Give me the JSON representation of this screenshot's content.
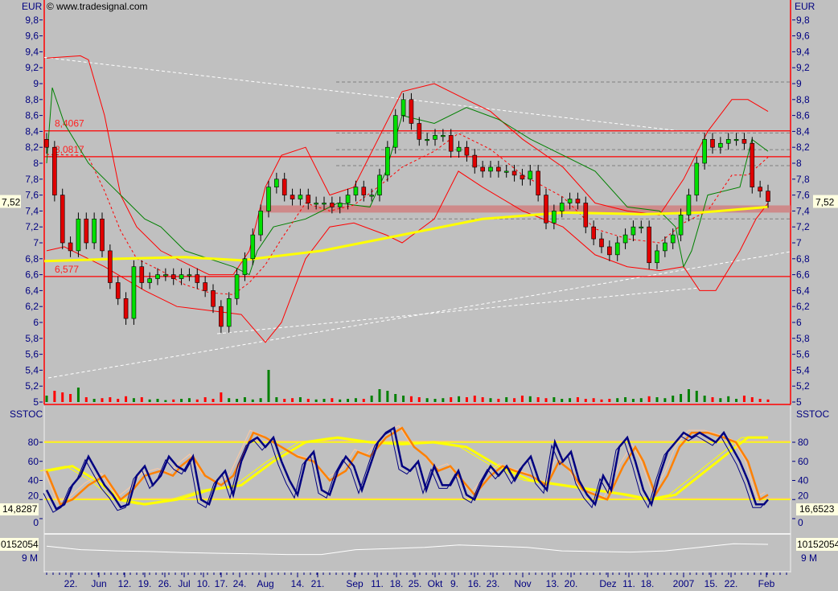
{
  "header": {
    "currency_left": "EUR",
    "currency_right": "EUR",
    "copyright": "© www.tradesignal.com",
    "stoch_title_left": "SSTOC",
    "stoch_title_right": "SSTOC"
  },
  "colors": {
    "background": "#c0c0c0",
    "axis_text": "#000080",
    "up_candle": "#00e000",
    "down_candle": "#e00000",
    "bollinger": "#ff0000",
    "green_line": "#008000",
    "moving_average": "#ffff00",
    "stoch_fast": "#000080",
    "stoch_orange": "#ff8000",
    "zone": "#d08080"
  },
  "chart_data": [
    {
      "type": "candlestick",
      "name": "price",
      "ylim": [
        5,
        10
      ],
      "yticks": [
        "5",
        "5,2",
        "5,4",
        "5,6",
        "5,8",
        "6",
        "6,2",
        "6,4",
        "6,6",
        "6,8",
        "7",
        "7,2",
        "7,4",
        "7,6",
        "7,8",
        "8",
        "8,2",
        "8,4",
        "8,6",
        "8,8",
        "9",
        "9,2",
        "9,4",
        "9,6",
        "9,8"
      ],
      "last_price": "7,52",
      "closes": [
        8.2,
        7.6,
        7.0,
        6.9,
        7.3,
        7.0,
        7.3,
        6.9,
        6.5,
        6.3,
        6.05,
        6.7,
        6.5,
        6.55,
        6.6,
        6.6,
        6.55,
        6.6,
        6.6,
        6.5,
        6.4,
        6.2,
        5.95,
        6.3,
        6.6,
        6.8,
        7.1,
        7.4,
        7.7,
        7.8,
        7.6,
        7.55,
        7.6,
        7.5,
        7.5,
        7.5,
        7.45,
        7.5,
        7.6,
        7.7,
        7.6,
        7.6,
        7.85,
        8.2,
        8.6,
        8.8,
        8.5,
        8.3,
        8.3,
        8.35,
        8.35,
        8.15,
        8.2,
        8.1,
        7.95,
        7.9,
        7.95,
        7.9,
        7.9,
        7.85,
        7.8,
        7.9,
        7.6,
        7.25,
        7.4,
        7.5,
        7.55,
        7.5,
        7.2,
        7.05,
        6.95,
        6.85,
        7.0,
        7.1,
        7.2,
        7.2,
        6.75,
        6.9,
        7.0,
        7.1,
        7.35,
        7.6,
        8.0,
        8.3,
        8.2,
        8.25,
        8.3,
        8.3,
        8.25,
        7.7,
        7.65,
        7.52
      ],
      "volume": [
        20,
        35,
        30,
        25,
        45,
        15,
        10,
        12,
        15,
        10,
        18,
        12,
        15,
        8,
        10,
        6,
        8,
        10,
        12,
        8,
        15,
        10,
        30,
        12,
        10,
        15,
        8,
        12,
        100,
        15,
        10,
        12,
        15,
        10,
        8,
        10,
        12,
        8,
        10,
        12,
        10,
        20,
        40,
        35,
        25,
        20,
        18,
        15,
        12,
        10,
        12,
        15,
        18,
        15,
        20,
        15,
        12,
        10,
        15,
        12,
        20,
        18,
        15,
        12,
        15,
        10,
        12,
        15,
        10,
        12,
        8,
        10,
        12,
        15,
        10,
        12,
        18,
        15,
        12,
        20,
        25,
        40,
        35,
        20,
        15,
        12,
        18,
        10,
        20,
        15,
        10,
        8
      ],
      "moving_average": [
        [
          55,
          6.77
        ],
        [
          150,
          6.8
        ],
        [
          230,
          6.82
        ],
        [
          300,
          6.78
        ],
        [
          400,
          6.9
        ],
        [
          500,
          7.1
        ],
        [
          600,
          7.3
        ],
        [
          700,
          7.38
        ],
        [
          800,
          7.36
        ],
        [
          870,
          7.38
        ],
        [
          955,
          7.45
        ]
      ],
      "upper_band": [
        [
          58,
          9.32
        ],
        [
          100,
          9.35
        ],
        [
          110,
          9.3
        ],
        [
          130,
          8.6
        ],
        [
          150,
          7.6
        ],
        [
          170,
          7.2
        ],
        [
          200,
          6.9
        ],
        [
          230,
          6.75
        ],
        [
          260,
          6.6
        ],
        [
          290,
          6.6
        ],
        [
          310,
          6.9
        ],
        [
          330,
          7.7
        ],
        [
          350,
          8.1
        ],
        [
          380,
          8.2
        ],
        [
          410,
          7.6
        ],
        [
          440,
          7.7
        ],
        [
          470,
          8.3
        ],
        [
          500,
          8.9
        ],
        [
          540,
          9.0
        ],
        [
          570,
          8.85
        ],
        [
          610,
          8.65
        ],
        [
          650,
          8.3
        ],
        [
          700,
          7.95
        ],
        [
          740,
          7.5
        ],
        [
          780,
          7.4
        ],
        [
          820,
          7.35
        ],
        [
          850,
          7.8
        ],
        [
          880,
          8.4
        ],
        [
          910,
          8.8
        ],
        [
          930,
          8.8
        ],
        [
          955,
          8.65
        ]
      ],
      "lower_band": [
        [
          58,
          6.9
        ],
        [
          80,
          6.95
        ],
        [
          100,
          6.85
        ],
        [
          130,
          6.7
        ],
        [
          180,
          6.4
        ],
        [
          220,
          6.2
        ],
        [
          260,
          6.15
        ],
        [
          300,
          6.1
        ],
        [
          330,
          5.75
        ],
        [
          350,
          6.0
        ],
        [
          380,
          6.8
        ],
        [
          410,
          7.2
        ],
        [
          440,
          7.25
        ],
        [
          480,
          7.1
        ],
        [
          500,
          7.0
        ],
        [
          540,
          7.3
        ],
        [
          570,
          7.9
        ],
        [
          600,
          7.7
        ],
        [
          650,
          7.4
        ],
        [
          700,
          7.2
        ],
        [
          740,
          6.85
        ],
        [
          780,
          6.7
        ],
        [
          820,
          6.65
        ],
        [
          850,
          6.7
        ],
        [
          870,
          6.4
        ],
        [
          890,
          6.4
        ],
        [
          920,
          6.9
        ],
        [
          940,
          7.3
        ],
        [
          955,
          7.5
        ]
      ],
      "green_line": [
        [
          58,
          8.0
        ],
        [
          65,
          8.95
        ],
        [
          80,
          8.5
        ],
        [
          110,
          8.0
        ],
        [
          140,
          7.7
        ],
        [
          160,
          7.5
        ],
        [
          180,
          7.3
        ],
        [
          200,
          7.2
        ],
        [
          230,
          6.9
        ],
        [
          260,
          6.8
        ],
        [
          290,
          6.7
        ],
        [
          310,
          6.6
        ],
        [
          320,
          6.9
        ],
        [
          340,
          7.2
        ],
        [
          380,
          7.3
        ],
        [
          420,
          7.5
        ],
        [
          460,
          7.45
        ],
        [
          480,
          7.9
        ],
        [
          500,
          8.6
        ],
        [
          540,
          8.5
        ],
        [
          580,
          8.7
        ],
        [
          620,
          8.55
        ],
        [
          660,
          8.3
        ],
        [
          700,
          8.1
        ],
        [
          740,
          7.9
        ],
        [
          780,
          7.45
        ],
        [
          820,
          7.4
        ],
        [
          840,
          7.2
        ],
        [
          850,
          6.7
        ],
        [
          860,
          6.9
        ],
        [
          880,
          7.6
        ],
        [
          920,
          7.7
        ],
        [
          935,
          8.3
        ],
        [
          955,
          8.15
        ]
      ],
      "levels": [
        {
          "value": 8.4067,
          "label": "8,4067"
        },
        {
          "value": 8.0817,
          "label": "8,0817"
        },
        {
          "value": 6.577,
          "label": "6,577"
        }
      ],
      "dashed_levels": [
        9.02,
        8.38,
        8.17,
        7.97,
        7.3
      ],
      "zone": [
        7.38,
        7.47
      ]
    },
    {
      "type": "line",
      "name": "SSTOC",
      "ylim": [
        -10,
        105
      ],
      "yticks": [
        "0",
        "20",
        "40",
        "60",
        "80"
      ],
      "left_value": "14,8287",
      "right_value": "16,6523",
      "bands": [
        20,
        80
      ],
      "fast": [
        [
          58,
          30
        ],
        [
          70,
          10
        ],
        [
          80,
          15
        ],
        [
          90,
          35
        ],
        [
          100,
          45
        ],
        [
          110,
          65
        ],
        [
          120,
          50
        ],
        [
          130,
          35
        ],
        [
          140,
          25
        ],
        [
          150,
          12
        ],
        [
          160,
          15
        ],
        [
          170,
          45
        ],
        [
          180,
          55
        ],
        [
          190,
          35
        ],
        [
          200,
          45
        ],
        [
          210,
          65
        ],
        [
          220,
          55
        ],
        [
          230,
          50
        ],
        [
          240,
          65
        ],
        [
          250,
          20
        ],
        [
          260,
          15
        ],
        [
          270,
          40
        ],
        [
          280,
          50
        ],
        [
          290,
          25
        ],
        [
          300,
          60
        ],
        [
          310,
          80
        ],
        [
          320,
          85
        ],
        [
          330,
          75
        ],
        [
          340,
          85
        ],
        [
          350,
          60
        ],
        [
          360,
          40
        ],
        [
          370,
          25
        ],
        [
          380,
          60
        ],
        [
          390,
          70
        ],
        [
          400,
          30
        ],
        [
          410,
          25
        ],
        [
          420,
          50
        ],
        [
          430,
          65
        ],
        [
          440,
          55
        ],
        [
          450,
          30
        ],
        [
          460,
          55
        ],
        [
          470,
          80
        ],
        [
          480,
          90
        ],
        [
          490,
          95
        ],
        [
          500,
          55
        ],
        [
          510,
          50
        ],
        [
          520,
          60
        ],
        [
          530,
          30
        ],
        [
          540,
          55
        ],
        [
          550,
          35
        ],
        [
          560,
          35
        ],
        [
          570,
          50
        ],
        [
          580,
          25
        ],
        [
          590,
          20
        ],
        [
          600,
          40
        ],
        [
          610,
          55
        ],
        [
          620,
          45
        ],
        [
          630,
          55
        ],
        [
          640,
          40
        ],
        [
          650,
          55
        ],
        [
          660,
          65
        ],
        [
          670,
          40
        ],
        [
          680,
          30
        ],
        [
          690,
          80
        ],
        [
          700,
          60
        ],
        [
          710,
          70
        ],
        [
          720,
          40
        ],
        [
          730,
          25
        ],
        [
          740,
          15
        ],
        [
          750,
          45
        ],
        [
          760,
          30
        ],
        [
          770,
          75
        ],
        [
          780,
          85
        ],
        [
          790,
          60
        ],
        [
          800,
          30
        ],
        [
          810,
          15
        ],
        [
          820,
          45
        ],
        [
          830,
          70
        ],
        [
          840,
          80
        ],
        [
          850,
          90
        ],
        [
          860,
          85
        ],
        [
          870,
          90
        ],
        [
          880,
          85
        ],
        [
          890,
          80
        ],
        [
          900,
          90
        ],
        [
          910,
          75
        ],
        [
          920,
          60
        ],
        [
          930,
          40
        ],
        [
          940,
          15
        ],
        [
          950,
          15
        ],
        [
          955,
          20
        ]
      ],
      "orange": [
        [
          58,
          50
        ],
        [
          75,
          15
        ],
        [
          90,
          20
        ],
        [
          110,
          35
        ],
        [
          130,
          45
        ],
        [
          150,
          20
        ],
        [
          165,
          30
        ],
        [
          180,
          45
        ],
        [
          200,
          50
        ],
        [
          215,
          45
        ],
        [
          225,
          55
        ],
        [
          240,
          65
        ],
        [
          255,
          45
        ],
        [
          275,
          35
        ],
        [
          290,
          45
        ],
        [
          315,
          90
        ],
        [
          330,
          85
        ],
        [
          350,
          75
        ],
        [
          370,
          65
        ],
        [
          390,
          60
        ],
        [
          410,
          40
        ],
        [
          430,
          50
        ],
        [
          445,
          70
        ],
        [
          460,
          65
        ],
        [
          480,
          85
        ],
        [
          500,
          95
        ],
        [
          515,
          75
        ],
        [
          530,
          65
        ],
        [
          545,
          50
        ],
        [
          560,
          55
        ],
        [
          575,
          40
        ],
        [
          590,
          25
        ],
        [
          610,
          45
        ],
        [
          625,
          55
        ],
        [
          640,
          50
        ],
        [
          660,
          45
        ],
        [
          680,
          35
        ],
        [
          695,
          60
        ],
        [
          710,
          50
        ],
        [
          725,
          30
        ],
        [
          740,
          25
        ],
        [
          755,
          20
        ],
        [
          775,
          55
        ],
        [
          790,
          75
        ],
        [
          800,
          60
        ],
        [
          815,
          25
        ],
        [
          830,
          45
        ],
        [
          845,
          75
        ],
        [
          860,
          90
        ],
        [
          880,
          90
        ],
        [
          900,
          85
        ],
        [
          915,
          80
        ],
        [
          930,
          60
        ],
        [
          945,
          20
        ],
        [
          955,
          25
        ]
      ],
      "yellow": [
        [
          58,
          50
        ],
        [
          90,
          55
        ],
        [
          120,
          40
        ],
        [
          150,
          20
        ],
        [
          180,
          15
        ],
        [
          220,
          20
        ],
        [
          260,
          30
        ],
        [
          300,
          35
        ],
        [
          340,
          60
        ],
        [
          380,
          80
        ],
        [
          420,
          85
        ],
        [
          460,
          80
        ],
        [
          500,
          78
        ],
        [
          540,
          80
        ],
        [
          580,
          75
        ],
        [
          620,
          55
        ],
        [
          660,
          40
        ],
        [
          700,
          35
        ],
        [
          740,
          30
        ],
        [
          780,
          25
        ],
        [
          810,
          20
        ],
        [
          840,
          25
        ],
        [
          870,
          45
        ],
        [
          900,
          65
        ],
        [
          930,
          85
        ],
        [
          955,
          85
        ]
      ]
    },
    {
      "type": "line",
      "name": "volume-average",
      "left_value": "0152054",
      "right_value": "10152054",
      "ytick": "9 M",
      "values": [
        10.0,
        9.7,
        9.6,
        9.55,
        9.45,
        9.4,
        9.35,
        9.3,
        9.3,
        9.7,
        9.8,
        9.9,
        10.1,
        10.0,
        9.9,
        9.6,
        9.55,
        9.5,
        9.6,
        9.9,
        10.2,
        10.15
      ]
    }
  ],
  "x_axis": {
    "ticks": [
      [
        "22.",
        88
      ],
      [
        "Jun",
        123
      ],
      [
        "12.",
        155
      ],
      [
        "19.",
        180
      ],
      [
        "26.",
        205
      ],
      [
        "Jul",
        229
      ],
      [
        "10.",
        253
      ],
      [
        "17.",
        275
      ],
      [
        "24.",
        298
      ],
      [
        "Aug",
        330
      ],
      [
        "14.",
        370
      ],
      [
        "21.",
        395
      ],
      [
        "Sep",
        441
      ],
      [
        "11.",
        469
      ],
      [
        "18.",
        493
      ],
      [
        "25.",
        516
      ],
      [
        "Okt",
        541
      ],
      [
        "9.",
        565
      ],
      [
        "16.",
        590
      ],
      [
        "23.",
        613
      ],
      [
        "Nov",
        650
      ],
      [
        "13.",
        687
      ],
      [
        "20.",
        710
      ],
      [
        "Dez",
        756
      ],
      [
        "11.",
        782
      ],
      [
        "18.",
        805
      ],
      [
        "2007",
        850
      ],
      [
        "15.",
        884
      ],
      [
        "22.",
        909
      ],
      [
        "Feb",
        953
      ]
    ]
  }
}
